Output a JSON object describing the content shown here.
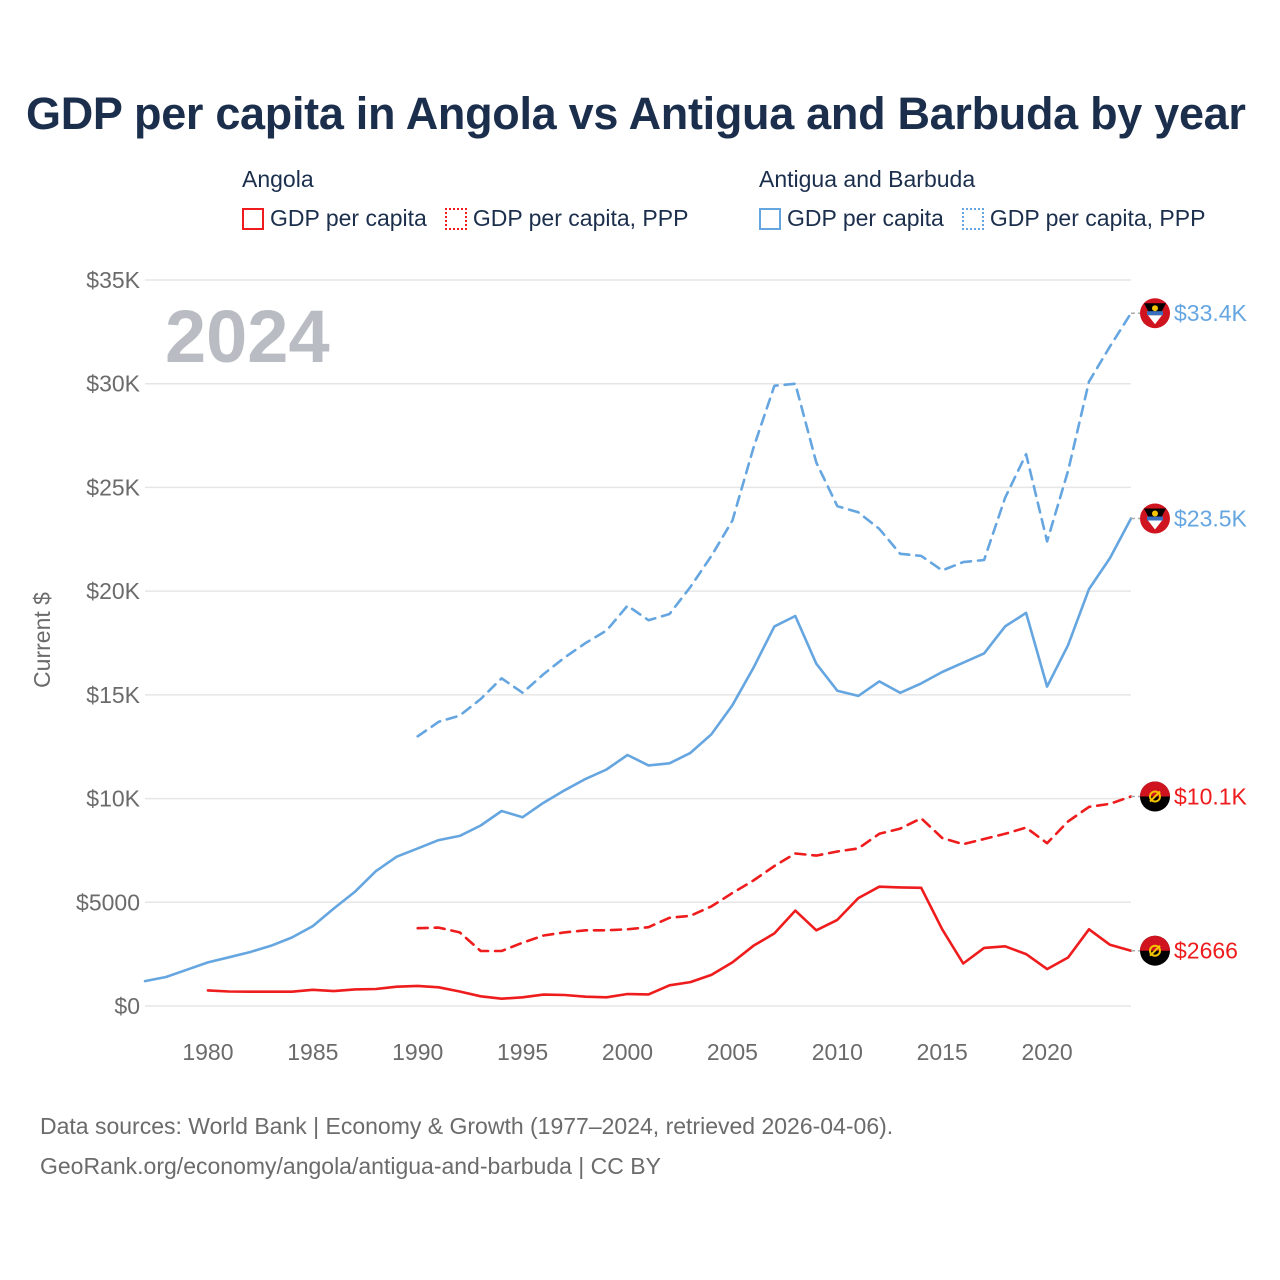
{
  "title": "GDP per capita in Angola vs Antigua and Barbuda by year",
  "legend": {
    "groups": [
      {
        "name": "Angola",
        "color": "#ee1c1c",
        "items": [
          {
            "label": "GDP per capita",
            "style": "solid"
          },
          {
            "label": "GDP per capita, PPP",
            "style": "dotted"
          }
        ]
      },
      {
        "name": "Antigua and Barbuda",
        "color": "#66a6e0",
        "items": [
          {
            "label": "GDP per capita",
            "style": "solid"
          },
          {
            "label": "GDP per capita, PPP",
            "style": "dotted"
          }
        ]
      }
    ]
  },
  "sources": {
    "line1": "Data sources: World Bank | Economy & Growth (1977–2024, retrieved 2026-04-06).",
    "line2": "GeoRank.org/economy/angola/antigua-and-barbuda | CC BY"
  },
  "chart_data": {
    "type": "line",
    "year_watermark": "2024",
    "ylabel": "Current $",
    "xlim": [
      1977,
      2024
    ],
    "ylim": [
      0,
      35000
    ],
    "x_ticks": [
      "1980",
      "1985",
      "1990",
      "1995",
      "2000",
      "2005",
      "2010",
      "2015",
      "2020"
    ],
    "y_ticks": [
      {
        "value": 0,
        "label": "$0"
      },
      {
        "value": 5000,
        "label": "$5000"
      },
      {
        "value": 10000,
        "label": "$10K"
      },
      {
        "value": 15000,
        "label": "$15K"
      },
      {
        "value": 20000,
        "label": "$20K"
      },
      {
        "value": 25000,
        "label": "$25K"
      },
      {
        "value": 30000,
        "label": "$30K"
      },
      {
        "value": 35000,
        "label": "$35K"
      }
    ],
    "grid": true,
    "series": [
      {
        "id": "atg-ppp",
        "name": "Antigua and Barbuda GDP per capita, PPP",
        "color": "#66a6e0",
        "dash": "dashed",
        "end_label": "$33.4K",
        "flag": "antigua-and-barbuda-flag-icon",
        "x": [
          1990,
          1991,
          1992,
          1993,
          1994,
          1995,
          1996,
          1997,
          1998,
          1999,
          2000,
          2001,
          2002,
          2003,
          2004,
          2005,
          2006,
          2007,
          2008,
          2009,
          2010,
          2011,
          2012,
          2013,
          2014,
          2015,
          2016,
          2017,
          2018,
          2019,
          2020,
          2021,
          2022,
          2023,
          2024
        ],
        "y": [
          13000,
          13700,
          14000,
          14800,
          15800,
          15100,
          16000,
          16800,
          17500,
          18100,
          19300,
          18600,
          18900,
          20200,
          21700,
          23400,
          26900,
          29900,
          30000,
          26200,
          24100,
          23800,
          23000,
          21800,
          21700,
          21000,
          21400,
          21500,
          24500,
          26600,
          22400,
          25800,
          30100,
          31800,
          33400
        ]
      },
      {
        "id": "atg-gdp",
        "name": "Antigua and Barbuda GDP per capita",
        "color": "#66a6e0",
        "dash": "solid",
        "end_label": "$23.5K",
        "flag": "antigua-and-barbuda-flag-icon",
        "x": [
          1977,
          1978,
          1979,
          1980,
          1981,
          1982,
          1983,
          1984,
          1985,
          1986,
          1987,
          1988,
          1989,
          1990,
          1991,
          1992,
          1993,
          1994,
          1995,
          1996,
          1997,
          1998,
          1999,
          2000,
          2001,
          2002,
          2003,
          2004,
          2005,
          2006,
          2007,
          2008,
          2009,
          2010,
          2011,
          2012,
          2013,
          2014,
          2015,
          2016,
          2017,
          2018,
          2019,
          2020,
          2021,
          2022,
          2023,
          2024
        ],
        "y": [
          1200,
          1400,
          1750,
          2100,
          2350,
          2600,
          2900,
          3300,
          3850,
          4700,
          5500,
          6500,
          7200,
          7600,
          8000,
          8200,
          8700,
          9400,
          9100,
          9800,
          10400,
          10950,
          11400,
          12100,
          11600,
          11700,
          12200,
          13100,
          14500,
          16300,
          18300,
          18800,
          16500,
          15200,
          14950,
          15650,
          15100,
          15550,
          16100,
          16550,
          17000,
          18300,
          18950,
          15400,
          17400,
          20100,
          21600,
          23500
        ]
      },
      {
        "id": "ago-ppp",
        "name": "Angola GDP per capita, PPP",
        "color": "#ee1c1c",
        "dash": "dashed",
        "end_label": "$10.1K",
        "flag": "angola-flag-icon",
        "x": [
          1990,
          1991,
          1992,
          1993,
          1994,
          1995,
          1996,
          1997,
          1998,
          1999,
          2000,
          2001,
          2002,
          2003,
          2004,
          2005,
          2006,
          2007,
          2008,
          2009,
          2010,
          2011,
          2012,
          2013,
          2014,
          2015,
          2016,
          2017,
          2018,
          2019,
          2020,
          2021,
          2022,
          2023,
          2024
        ],
        "y": [
          3750,
          3780,
          3550,
          2650,
          2650,
          3050,
          3400,
          3550,
          3650,
          3650,
          3700,
          3800,
          4250,
          4350,
          4800,
          5450,
          6050,
          6750,
          7350,
          7250,
          7450,
          7600,
          8300,
          8550,
          9050,
          8100,
          7800,
          8050,
          8300,
          8600,
          7850,
          8900,
          9600,
          9750,
          10100
        ]
      },
      {
        "id": "ago-gdp",
        "name": "Angola GDP per capita",
        "color": "#ee1c1c",
        "dash": "solid",
        "end_label": "$2666",
        "flag": "angola-flag-icon",
        "x": [
          1980,
          1981,
          1982,
          1983,
          1984,
          1985,
          1986,
          1987,
          1988,
          1989,
          1990,
          1991,
          1992,
          1993,
          1994,
          1995,
          1996,
          1997,
          1998,
          1999,
          2000,
          2001,
          2002,
          2003,
          2004,
          2005,
          2006,
          2007,
          2008,
          2009,
          2010,
          2011,
          2012,
          2013,
          2014,
          2015,
          2016,
          2017,
          2018,
          2019,
          2020,
          2021,
          2022,
          2023,
          2024
        ],
        "y": [
          750,
          700,
          690,
          690,
          690,
          780,
          720,
          800,
          820,
          930,
          970,
          900,
          700,
          470,
          350,
          420,
          550,
          530,
          450,
          420,
          580,
          560,
          1000,
          1150,
          1500,
          2100,
          2900,
          3500,
          4600,
          3650,
          4150,
          5200,
          5750,
          5720,
          5700,
          3700,
          2050,
          2800,
          2880,
          2500,
          1780,
          2340,
          3700,
          2950,
          2666
        ]
      }
    ]
  }
}
